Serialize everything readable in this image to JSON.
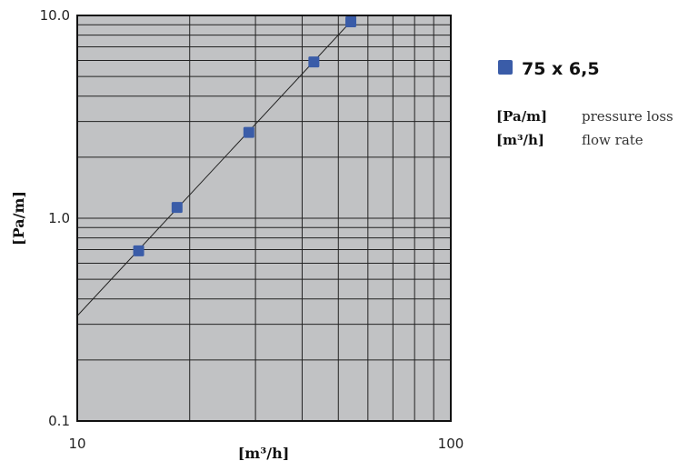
{
  "chart_data": {
    "type": "scatter",
    "xscale": "log",
    "yscale": "log",
    "xlim": [
      10,
      100
    ],
    "ylim": [
      0.1,
      10
    ],
    "xticks": [
      10,
      100
    ],
    "xtick_labels": [
      "10",
      "100"
    ],
    "yticks": [
      0.1,
      1,
      10
    ],
    "ytick_labels": [
      "0.1",
      "1.0",
      "10.0"
    ],
    "xlabel": "[m³/h]",
    "ylabel": "[Pa/m]",
    "grid": true,
    "legend_position": "right",
    "series": [
      {
        "name": "75 x 6,5",
        "color": "#3a5ca8",
        "marker": "square",
        "points": [
          {
            "x": 14.6,
            "y": 0.69
          },
          {
            "x": 18.5,
            "y": 1.13
          },
          {
            "x": 28.8,
            "y": 2.65
          },
          {
            "x": 43.0,
            "y": 5.9
          },
          {
            "x": 54.0,
            "y": 9.3
          }
        ]
      }
    ],
    "trend_line": {
      "color": "#222222",
      "x": [
        10,
        60
      ],
      "y": [
        0.33,
        11.5
      ]
    },
    "legend_notes": [
      {
        "abbr": "[Pa/m]",
        "desc": "pressure loss"
      },
      {
        "abbr": "[m³/h]",
        "desc": "flow rate"
      }
    ]
  },
  "colors": {
    "plot_background": "#c1c2c4",
    "grid": "#222222",
    "marker": "#3a5ca8"
  }
}
